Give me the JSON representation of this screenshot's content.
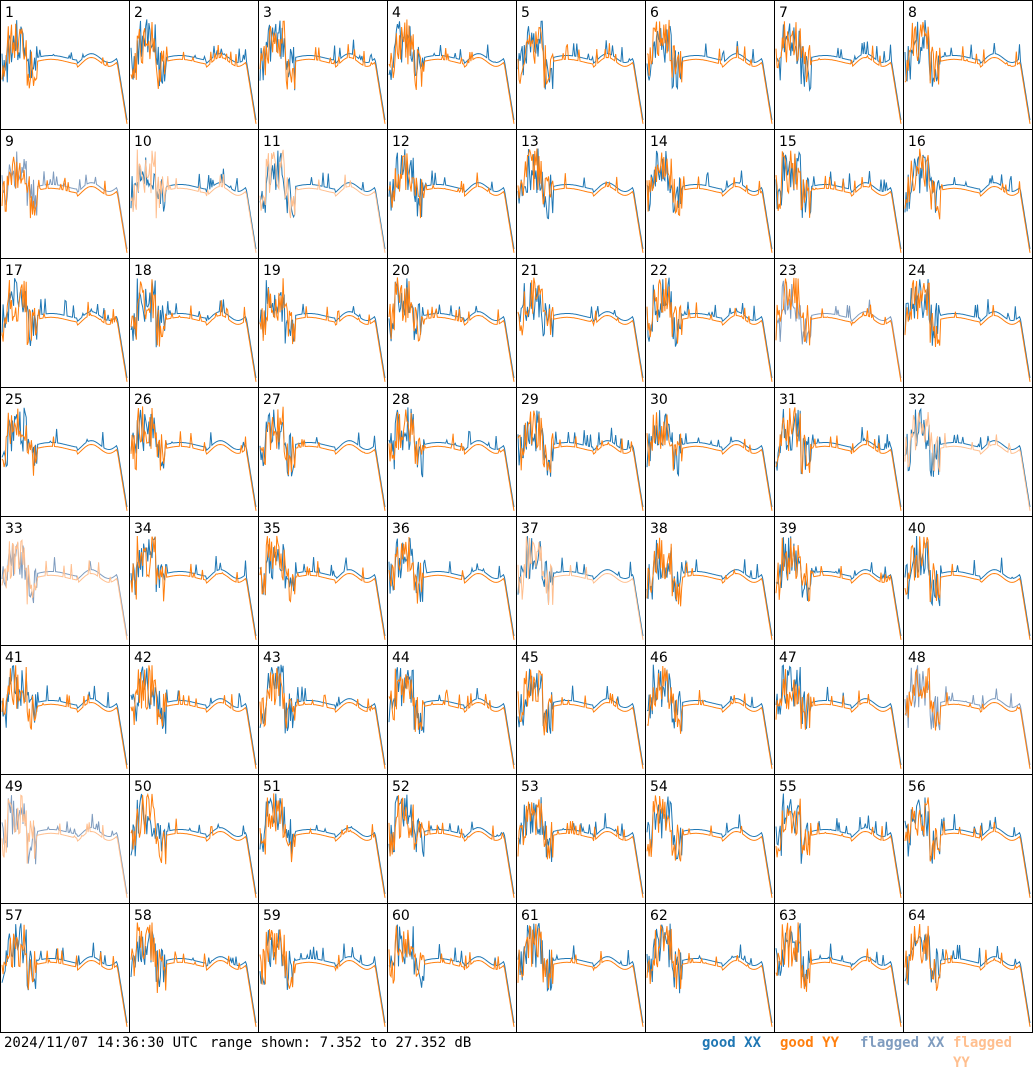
{
  "timestamp": "2024/11/07 14:36:30 UTC",
  "range_text": "range shown: 7.352 to 27.352 dB",
  "colors": {
    "good_xx": "#1f77b4",
    "good_yy": "#ff7f0e",
    "flagged_xx": "#7f9cbf",
    "flagged_yy": "#ffbf8f"
  },
  "legend": [
    {
      "label": "good XX",
      "color": "#1f77b4"
    },
    {
      "label": "good YY",
      "color": "#ff7f0e"
    },
    {
      "label": "flagged XX",
      "color": "#7f9cbf"
    },
    {
      "label": "flagged YY",
      "color": "#ffbf8f"
    }
  ],
  "chart_data": {
    "type": "line",
    "xlabel": "",
    "ylabel": "",
    "ylim": [
      7.352,
      27.352
    ],
    "grid": "8x8 small multiples",
    "panels": [
      {
        "n": "1"
      },
      {
        "n": "2"
      },
      {
        "n": "3"
      },
      {
        "n": "4"
      },
      {
        "n": "5"
      },
      {
        "n": "6"
      },
      {
        "n": "7"
      },
      {
        "n": "8"
      },
      {
        "n": "9",
        "xx_flagged": true
      },
      {
        "n": "10",
        "yy_flagged": true
      },
      {
        "n": "11",
        "yy_flagged": true
      },
      {
        "n": "12"
      },
      {
        "n": "13"
      },
      {
        "n": "14"
      },
      {
        "n": "15"
      },
      {
        "n": "16"
      },
      {
        "n": "17"
      },
      {
        "n": "18"
      },
      {
        "n": "19"
      },
      {
        "n": "20"
      },
      {
        "n": "21"
      },
      {
        "n": "22"
      },
      {
        "n": "23",
        "xx_flagged": true
      },
      {
        "n": "24"
      },
      {
        "n": "25"
      },
      {
        "n": "26"
      },
      {
        "n": "27"
      },
      {
        "n": "28"
      },
      {
        "n": "29"
      },
      {
        "n": "30"
      },
      {
        "n": "31"
      },
      {
        "n": "32",
        "yy_flagged": true
      },
      {
        "n": "33",
        "xx_flagged": true,
        "yy_flagged": true
      },
      {
        "n": "34"
      },
      {
        "n": "35"
      },
      {
        "n": "36"
      },
      {
        "n": "37",
        "yy_flagged": true
      },
      {
        "n": "38"
      },
      {
        "n": "39"
      },
      {
        "n": "40"
      },
      {
        "n": "41"
      },
      {
        "n": "42"
      },
      {
        "n": "43"
      },
      {
        "n": "44"
      },
      {
        "n": "45"
      },
      {
        "n": "46"
      },
      {
        "n": "47"
      },
      {
        "n": "48",
        "xx_flagged": true
      },
      {
        "n": "49",
        "xx_flagged": true,
        "yy_flagged": true
      },
      {
        "n": "50"
      },
      {
        "n": "51"
      },
      {
        "n": "52"
      },
      {
        "n": "53"
      },
      {
        "n": "54"
      },
      {
        "n": "55"
      },
      {
        "n": "56"
      },
      {
        "n": "57"
      },
      {
        "n": "58"
      },
      {
        "n": "59"
      },
      {
        "n": "60"
      },
      {
        "n": "61"
      },
      {
        "n": "62"
      },
      {
        "n": "63"
      },
      {
        "n": "64"
      }
    ]
  }
}
